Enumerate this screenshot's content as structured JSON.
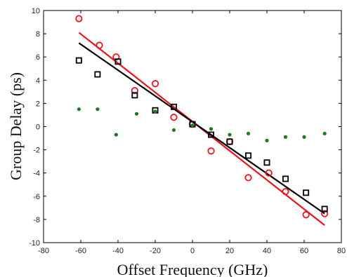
{
  "chart_data": {
    "type": "scatter",
    "xlabel": "Offset Frequency (GHz)",
    "ylabel": "Group Delay (ps)",
    "xlim": [
      -80,
      80
    ],
    "ylim": [
      -10,
      10
    ],
    "xticks": [
      -80,
      -60,
      -40,
      -20,
      0,
      20,
      40,
      60,
      80
    ],
    "yticks": [
      -10,
      -8,
      -6,
      -4,
      -2,
      0,
      2,
      4,
      6,
      8,
      10
    ],
    "xtick_labels": [
      "-80",
      "-60",
      "-40",
      "-20",
      "0",
      "20",
      "40",
      "60",
      "80"
    ],
    "ytick_labels": [
      "-10",
      "-8",
      "-6",
      "-4",
      "-2",
      "0",
      "2",
      "4",
      "6",
      "8",
      "10"
    ],
    "grid": false,
    "legend": "none",
    "series": [
      {
        "marker": "circle-open",
        "color": "#e8141e",
        "points": [
          [
            -61,
            9.3
          ],
          [
            -50,
            7.0
          ],
          [
            -41,
            6.0
          ],
          [
            -31,
            3.1
          ],
          [
            -20,
            3.7
          ],
          [
            -10,
            0.8
          ],
          [
            0,
            0.2
          ],
          [
            10,
            -2.1
          ],
          [
            20,
            -1.3
          ],
          [
            30,
            -4.4
          ],
          [
            41,
            -4.0
          ],
          [
            50,
            -5.6
          ],
          [
            61,
            -7.6
          ],
          [
            71,
            -7.5
          ]
        ]
      },
      {
        "marker": "square-open",
        "color": "#000000",
        "points": [
          [
            -61,
            5.7
          ],
          [
            -51,
            4.5
          ],
          [
            -40,
            5.6
          ],
          [
            -31,
            2.7
          ],
          [
            -20,
            1.4
          ],
          [
            -10,
            1.7
          ],
          [
            0,
            0.2
          ],
          [
            10,
            -0.7
          ],
          [
            20,
            -1.3
          ],
          [
            30,
            -2.5
          ],
          [
            40,
            -3.1
          ],
          [
            50,
            -4.5
          ],
          [
            61,
            -5.7
          ],
          [
            71,
            -7.1
          ]
        ]
      },
      {
        "marker": "dot",
        "color": "#1e7a1e",
        "points": [
          [
            -61,
            1.5
          ],
          [
            -51,
            1.5
          ],
          [
            -41,
            -0.7
          ],
          [
            -30,
            1.1
          ],
          [
            -20,
            1.3
          ],
          [
            -10,
            -0.3
          ],
          [
            0,
            0.1
          ],
          [
            10,
            -0.2
          ],
          [
            20,
            -0.7
          ],
          [
            30,
            -0.6
          ],
          [
            40,
            -1.2
          ],
          [
            50,
            -0.9
          ],
          [
            60,
            -0.9
          ],
          [
            71,
            -0.6
          ]
        ]
      }
    ],
    "fit_lines": [
      {
        "color": "#e8141e",
        "x": [
          -61,
          71
        ],
        "y": [
          8.1,
          -8.5
        ]
      },
      {
        "color": "#000000",
        "x": [
          -61,
          71
        ],
        "y": [
          7.2,
          -7.5
        ]
      }
    ]
  }
}
